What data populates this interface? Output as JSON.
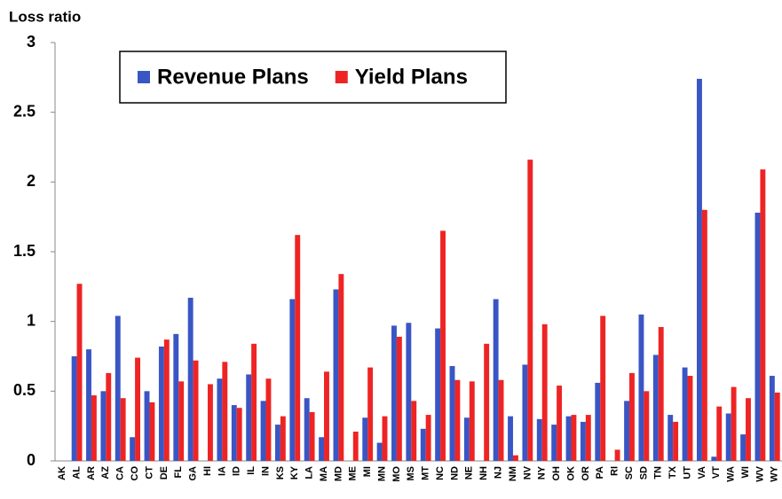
{
  "chart_data": {
    "type": "bar",
    "y_label": "Loss ratio",
    "categories": [
      "AK",
      "AL",
      "AR",
      "AZ",
      "CA",
      "CO",
      "CT",
      "DE",
      "FL",
      "GA",
      "HI",
      "IA",
      "ID",
      "IL",
      "IN",
      "KS",
      "KY",
      "LA",
      "MA",
      "MD",
      "ME",
      "MI",
      "MN",
      "MO",
      "MS",
      "MT",
      "NC",
      "ND",
      "NE",
      "NH",
      "NJ",
      "NM",
      "NV",
      "NY",
      "OH",
      "OK",
      "OR",
      "PA",
      "RI",
      "SC",
      "SD",
      "TN",
      "TX",
      "UT",
      "VA",
      "VT",
      "WA",
      "WI",
      "WV",
      "WY"
    ],
    "series": [
      {
        "name": "Revenue Plans",
        "color": "#3a56c4",
        "values": [
          null,
          0.75,
          0.8,
          0.5,
          1.04,
          0.17,
          0.5,
          0.82,
          0.91,
          1.17,
          null,
          0.59,
          0.4,
          0.62,
          0.43,
          0.26,
          1.16,
          0.45,
          0.17,
          1.23,
          null,
          0.31,
          0.13,
          0.97,
          0.99,
          0.23,
          0.95,
          0.68,
          0.31,
          null,
          1.16,
          0.32,
          0.69,
          0.3,
          0.26,
          0.32,
          0.28,
          0.56,
          null,
          0.43,
          1.05,
          0.76,
          0.33,
          0.67,
          2.74,
          0.03,
          0.34,
          0.19,
          1.78,
          0.61
        ]
      },
      {
        "name": "Yield Plans",
        "color": "#ee2424",
        "values": [
          null,
          1.27,
          0.47,
          0.63,
          0.45,
          0.74,
          0.42,
          0.87,
          0.57,
          0.72,
          0.55,
          0.71,
          0.38,
          0.84,
          0.59,
          0.32,
          1.62,
          0.35,
          0.64,
          1.34,
          0.21,
          0.67,
          0.32,
          0.89,
          0.43,
          0.33,
          1.65,
          0.58,
          0.57,
          0.84,
          0.58,
          0.04,
          2.16,
          0.98,
          0.54,
          0.33,
          0.33,
          1.04,
          0.08,
          0.63,
          0.5,
          0.96,
          0.28,
          0.61,
          1.8,
          0.39,
          0.53,
          0.45,
          2.09,
          0.49
        ]
      }
    ],
    "ylim": [
      0,
      3
    ],
    "yticks": [
      0,
      0.5,
      1,
      1.5,
      2,
      2.5,
      3
    ],
    "legend": "top-left"
  }
}
